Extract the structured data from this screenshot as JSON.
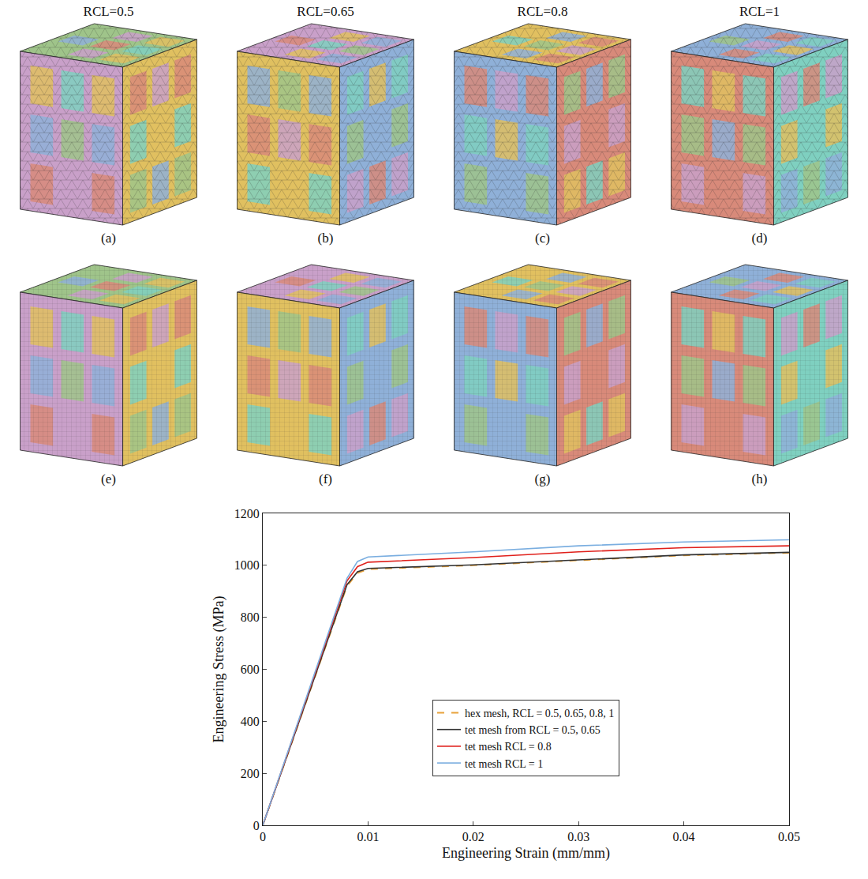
{
  "mesh_figure": {
    "column_titles": [
      "RCL=0.5",
      "RCL=0.65",
      "RCL=0.8",
      "RCL=1"
    ],
    "rows": [
      {
        "mesh": "tet",
        "captions": [
          "(a)",
          "(b)",
          "(c)",
          "(d)"
        ]
      },
      {
        "mesh": "hex",
        "captions": [
          "(e)",
          "(f)",
          "(g)",
          "(h)"
        ]
      }
    ]
  },
  "chart_data": {
    "type": "line",
    "x_label": "Engineering Strain (mm/mm)",
    "y_label": "Engineering Stress (MPa)",
    "x": [
      0,
      0.008,
      0.009,
      0.01,
      0.02,
      0.03,
      0.04,
      0.05
    ],
    "series": [
      {
        "name": "hex mesh, RCL = 0.5, 0.65, 0.8, 1",
        "color": "#e8a23a",
        "line_style": "dash",
        "values": [
          0,
          920,
          970,
          985,
          1000,
          1020,
          1038,
          1048
        ]
      },
      {
        "name": "tet mesh from RCL = 0.5, 0.65",
        "color": "#333333",
        "line_style": "solid",
        "values": [
          0,
          925,
          975,
          988,
          1002,
          1022,
          1040,
          1050
        ]
      },
      {
        "name": "tet mesh RCL = 0.8",
        "color": "#e0201b",
        "line_style": "solid",
        "values": [
          0,
          940,
          995,
          1012,
          1030,
          1052,
          1068,
          1075
        ]
      },
      {
        "name": "tet mesh RCL = 1",
        "color": "#7aaee0",
        "line_style": "solid",
        "values": [
          0,
          950,
          1015,
          1032,
          1052,
          1075,
          1090,
          1098
        ]
      }
    ],
    "xlim": [
      0,
      0.05
    ],
    "xticks": [
      0,
      0.01,
      0.02,
      0.03,
      0.04,
      0.05
    ],
    "ylim": [
      0,
      1200
    ],
    "yticks": [
      0,
      200,
      400,
      600,
      800,
      1000,
      1200
    ],
    "grid": false,
    "legend": "center"
  }
}
